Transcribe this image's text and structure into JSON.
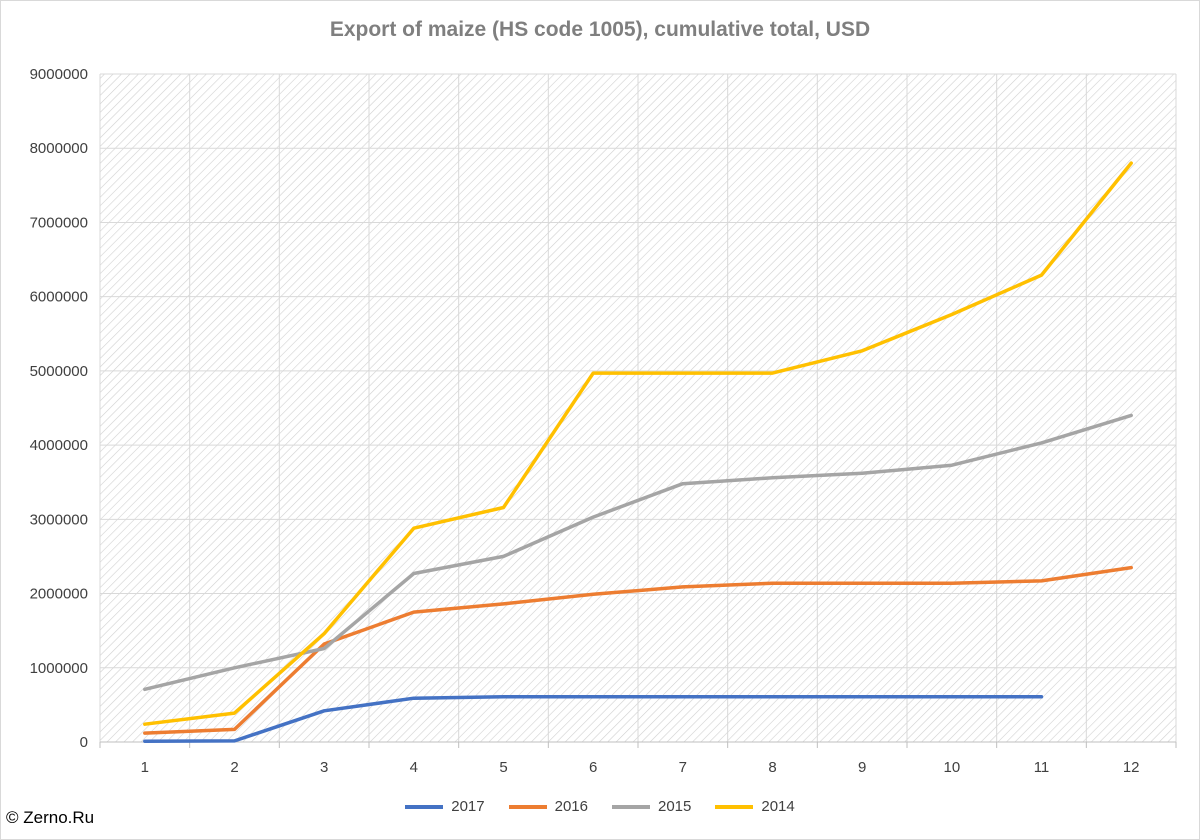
{
  "chart_data": {
    "type": "line",
    "title": "Export of maize (HS code 1005), cumulative total, USD",
    "xlabel": "",
    "ylabel": "",
    "categories": [
      "1",
      "2",
      "3",
      "4",
      "5",
      "6",
      "7",
      "8",
      "9",
      "10",
      "11",
      "12"
    ],
    "ylim": [
      0,
      9000000
    ],
    "yticks": [
      0,
      1000000,
      2000000,
      3000000,
      4000000,
      5000000,
      6000000,
      7000000,
      8000000,
      9000000
    ],
    "grid": true,
    "legend": "bottom",
    "series": [
      {
        "name": "2017",
        "color": "#4472c4",
        "values": [
          10000,
          15000,
          420000,
          590000,
          610000,
          610000,
          610000,
          610000,
          610000,
          610000,
          610000,
          null
        ]
      },
      {
        "name": "2016",
        "color": "#ed7d31",
        "values": [
          120000,
          170000,
          1320000,
          1750000,
          1860000,
          1990000,
          2090000,
          2140000,
          2140000,
          2140000,
          2170000,
          2350000
        ]
      },
      {
        "name": "2015",
        "color": "#a5a5a5",
        "values": [
          710000,
          1000000,
          1260000,
          2270000,
          2500000,
          3030000,
          3480000,
          3560000,
          3620000,
          3730000,
          4030000,
          4400000
        ]
      },
      {
        "name": "2014",
        "color": "#ffc000",
        "values": [
          240000,
          390000,
          1460000,
          2880000,
          3160000,
          4970000,
          4970000,
          4970000,
          5270000,
          5760000,
          6290000,
          7800000
        ]
      }
    ]
  },
  "footer": {
    "copyright": "© Zerno.Ru"
  }
}
